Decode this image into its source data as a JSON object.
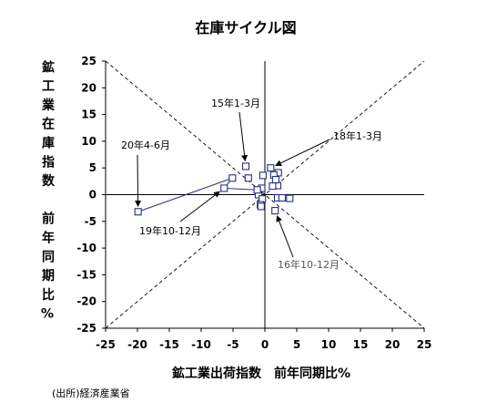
{
  "source_note": "(出所)経済産業省",
  "colors": {
    "series": "#24307f",
    "axis": "#000000",
    "guide": "#000000",
    "annotation": "#000000",
    "annotation_muted": "#555555"
  },
  "chart_data": {
    "type": "scatter",
    "title": "在庫サイクル図",
    "xlabel": "鉱工業出荷指数　前年同期比%",
    "ylabel": "鉱工業在庫指数　前年同期比%",
    "xlim": [
      -25,
      25
    ],
    "ylim": [
      -25,
      25
    ],
    "xticks": [
      "-25",
      "-20",
      "-15",
      "-10",
      "-5",
      "0",
      "5",
      "10",
      "15",
      "20",
      "25"
    ],
    "yticks": [
      "25",
      "20",
      "15",
      "10",
      "5",
      "0",
      "-5",
      "-10",
      "-15",
      "-20",
      "-25"
    ],
    "grid": false,
    "legend": "none",
    "zero_lines": true,
    "guide_lines": [
      {
        "slope": 1,
        "intercept": 0,
        "style": "dashed"
      },
      {
        "slope": -1,
        "intercept": 0,
        "style": "dashed"
      }
    ],
    "series": [
      {
        "marker": "square",
        "connect_last": 4,
        "points": [
          {
            "x": -3.0,
            "y": 5.3
          },
          {
            "x": -2.6,
            "y": 3.1
          },
          {
            "x": -0.5,
            "y": 1.2
          },
          {
            "x": -1.0,
            "y": 0.0
          },
          {
            "x": -0.4,
            "y": -0.8
          },
          {
            "x": -0.7,
            "y": -1.9
          },
          {
            "x": -0.6,
            "y": -2.2
          },
          {
            "x": 1.6,
            "y": -3.0
          },
          {
            "x": 2.0,
            "y": -0.6
          },
          {
            "x": 3.9,
            "y": -0.7
          },
          {
            "x": 2.7,
            "y": -0.6
          },
          {
            "x": 2.0,
            "y": 1.7
          },
          {
            "x": 0.9,
            "y": 5.0
          },
          {
            "x": 2.1,
            "y": 4.1
          },
          {
            "x": 1.4,
            "y": 3.7
          },
          {
            "x": 1.7,
            "y": 2.8
          },
          {
            "x": -0.3,
            "y": 3.6
          },
          {
            "x": 1.2,
            "y": 1.6
          },
          {
            "x": -1.2,
            "y": 0.9
          },
          {
            "x": -6.4,
            "y": 1.2
          },
          {
            "x": -5.1,
            "y": 3.1
          },
          {
            "x": -19.9,
            "y": -3.2
          }
        ]
      }
    ],
    "annotations": [
      {
        "text": "15年1-3月",
        "x": -3.0,
        "y": 5.3,
        "color": "#000000"
      },
      {
        "text": "18年1-3月",
        "x": 0.9,
        "y": 5.0,
        "color": "#000000"
      },
      {
        "text": "20年4-6月",
        "x": -19.9,
        "y": -3.2,
        "color": "#000000"
      },
      {
        "text": "19年10-12月",
        "x": -6.4,
        "y": 1.2,
        "color": "#000000"
      },
      {
        "text": "16年10-12月",
        "x": 1.6,
        "y": -3.0,
        "color": "#555555"
      }
    ]
  }
}
